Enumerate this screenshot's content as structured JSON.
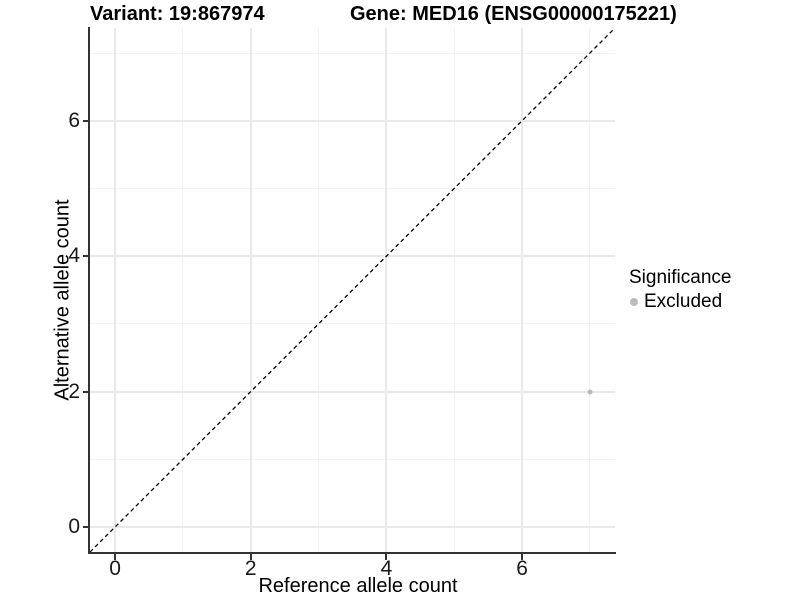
{
  "header": {
    "variant_title": "Variant: 19:867974",
    "gene_title": "Gene: MED16 (ENSG00000175221)"
  },
  "legend": {
    "title": "Significance",
    "items": [
      {
        "label": "Excluded",
        "color": "#bcbcbc"
      }
    ]
  },
  "chart_data": {
    "type": "scatter",
    "title": "Variant: 19:867974 / Gene: MED16 (ENSG00000175221)",
    "xlabel": "Reference allele count",
    "ylabel": "Alternative allele count",
    "xlim": [
      -0.37,
      7.37
    ],
    "ylim": [
      -0.37,
      7.37
    ],
    "x_ticks": [
      0,
      2,
      4,
      6
    ],
    "y_ticks": [
      0,
      2,
      4,
      6
    ],
    "x_minor_gridlines": [
      1,
      3,
      5,
      7
    ],
    "y_minor_gridlines": [
      1,
      3,
      5,
      7
    ],
    "grid": "major and minor, light gray",
    "legend_position": "right",
    "identity_line": {
      "style": "dashed",
      "color": "#000000",
      "equation": "y = x"
    },
    "series": [
      {
        "name": "Excluded",
        "color": "#bcbcbc",
        "points": [
          {
            "x": 7,
            "y": 2
          }
        ]
      }
    ],
    "colors": {
      "grid_major": "#e9e9e9",
      "grid_minor": "#f2f2f2",
      "axis_line": "#333333",
      "tick_label": "#1a1a1a"
    }
  }
}
